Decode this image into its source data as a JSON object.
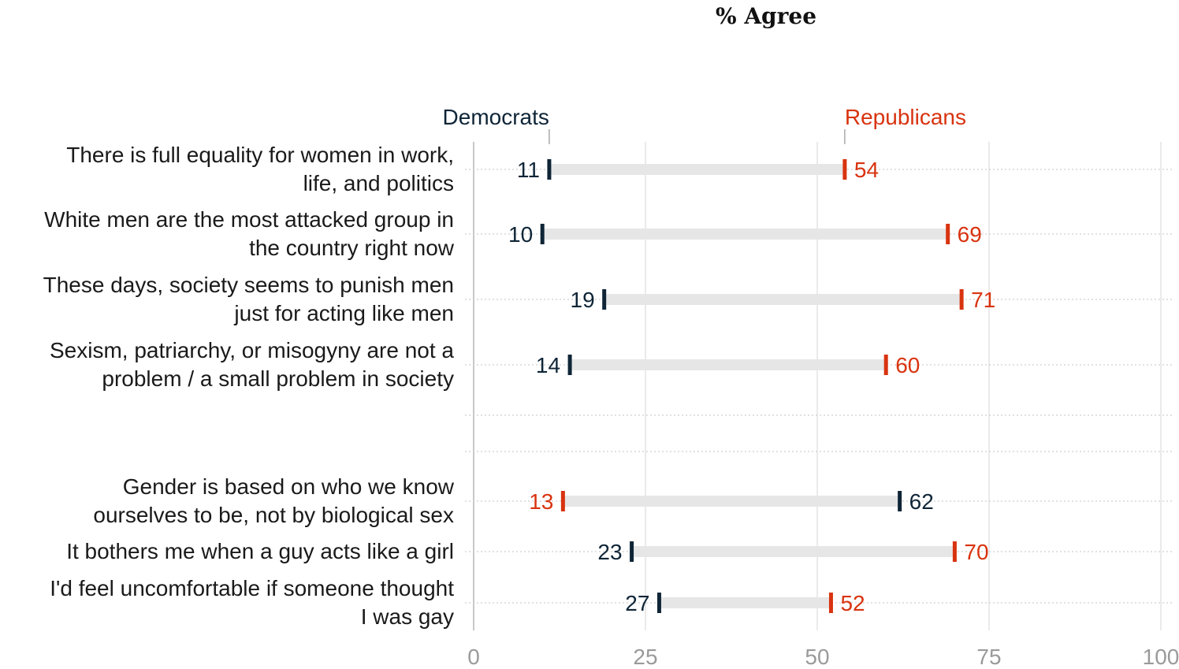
{
  "chart_data": {
    "type": "dumbbell",
    "title": "% Agree",
    "xlim": [
      0,
      100
    ],
    "xticks": [
      0,
      25,
      50,
      75,
      100
    ],
    "grid": true,
    "legend": {
      "democrats": "Democrats",
      "republicans": "Republicans"
    },
    "colors": {
      "democrats": "#0f2537",
      "republicans": "#d8330f",
      "bar": "#e6e6e6"
    },
    "rows": [
      {
        "lines": [
          "There is full equality for women in work,",
          "life, and politics"
        ],
        "dem": 11,
        "rep": 54,
        "dem_label": "11",
        "rep_label": "54"
      },
      {
        "lines": [
          "White men are the most attacked group in",
          "the country right now"
        ],
        "dem": 10,
        "rep": 69,
        "dem_label": "10",
        "rep_label": "69"
      },
      {
        "lines": [
          "These days, society seems to punish men",
          "just for acting like men"
        ],
        "dem": 19,
        "rep": 71,
        "dem_label": "19",
        "rep_label": "71"
      },
      {
        "lines": [
          "Sexism, patriarchy, or misogyny are not a",
          "problem / a small problem in society"
        ],
        "dem": 14,
        "rep": 60,
        "dem_label": "14",
        "rep_label": "60"
      },
      {
        "lines": [
          "Gender is based on who we know",
          "ourselves to be, not by biological sex"
        ],
        "dem": 62,
        "rep": 13,
        "dem_label": "62",
        "rep_label": "13"
      },
      {
        "lines": [
          "It bothers me when a guy acts like a girl"
        ],
        "dem": 23,
        "rep": 70,
        "dem_label": "23",
        "rep_label": "70"
      },
      {
        "lines": [
          "I'd feel uncomfortable if someone thought",
          "I was gay"
        ],
        "dem": 27,
        "rep": 52,
        "dem_label": "27",
        "rep_label": "52"
      }
    ]
  }
}
